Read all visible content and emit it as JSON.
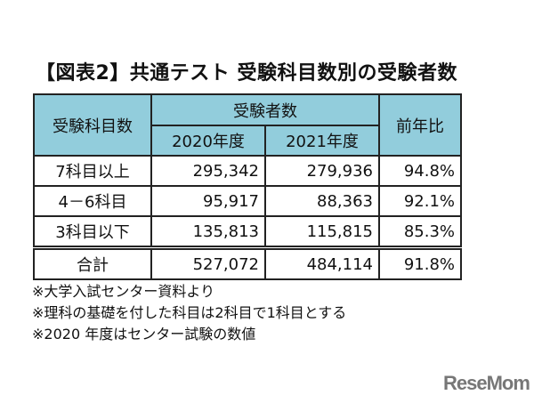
{
  "title": "【図表2】共通テスト 受験科目数別の受験者数",
  "chart_data": {
    "type": "table",
    "headers": {
      "category": "受験科目数",
      "group": "受験者数",
      "years": [
        "2020年度",
        "2021年度"
      ],
      "ratio": "前年比"
    },
    "rows": [
      {
        "label": "7科目以上",
        "v2020": "295,342",
        "v2021": "279,936",
        "ratio": "94.8%"
      },
      {
        "label": "4－6科目",
        "v2020": "95,917",
        "v2021": "88,363",
        "ratio": "92.1%"
      },
      {
        "label": "3科目以下",
        "v2020": "135,813",
        "v2021": "115,815",
        "ratio": "85.3%"
      }
    ],
    "total": {
      "label": "合計",
      "v2020": "527,072",
      "v2021": "484,114",
      "ratio": "91.8%"
    },
    "header_color": "#92cddc"
  },
  "notes": [
    "※大学入試センター資料より",
    "※理科の基礎を付した科目は2科目で1科目とする",
    "※2020 年度はセンター試験の数値"
  ],
  "logo": "ReseMom"
}
